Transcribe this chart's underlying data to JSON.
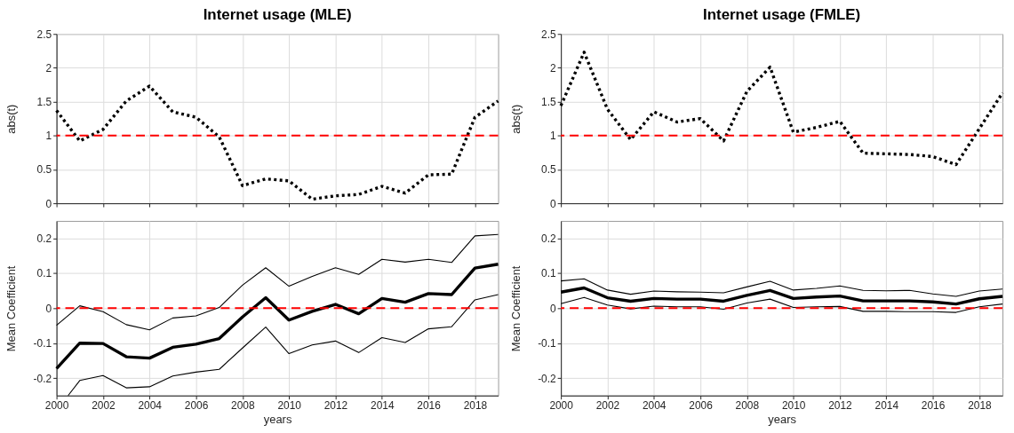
{
  "chart_data": [
    {
      "type": "line",
      "title": "Internet usage (MLE)",
      "ylabel": "abs(t)",
      "x": [
        2000,
        2001,
        2002,
        2003,
        2004,
        2005,
        2006,
        2007,
        2008,
        2009,
        2010,
        2011,
        2012,
        2013,
        2014,
        2015,
        2016,
        2017,
        2018,
        2019
      ],
      "series": [
        {
          "color": "#000000",
          "values": [
            1.37,
            0.92,
            1.09,
            1.51,
            1.73,
            1.35,
            1.27,
            0.98,
            0.26,
            0.36,
            0.33,
            0.06,
            0.11,
            0.13,
            0.25,
            0.15,
            0.42,
            0.43,
            1.27,
            1.51
          ]
        }
      ],
      "line_style": "dotted",
      "xlim": [
        2000,
        2019
      ],
      "xticks": [
        2000,
        2002,
        2004,
        2006,
        2008,
        2010,
        2012,
        2014,
        2016,
        2018
      ],
      "ylim": [
        0,
        2.5
      ],
      "yticks": [
        0,
        0.5,
        1,
        1.5,
        2,
        2.5
      ],
      "ref_lines": [
        {
          "axis": "y",
          "value": 1,
          "color": "#ff0000",
          "line_style": "dashed"
        }
      ],
      "grid": true,
      "tick_labels": "y"
    },
    {
      "type": "line",
      "title": "Internet usage (FMLE)",
      "ylabel": "abs(t)",
      "x": [
        2000,
        2001,
        2002,
        2003,
        2004,
        2005,
        2006,
        2007,
        2008,
        2009,
        2010,
        2011,
        2012,
        2013,
        2014,
        2015,
        2016,
        2017,
        2018,
        2019
      ],
      "series": [
        {
          "color": "#000000",
          "values": [
            1.44,
            2.23,
            1.39,
            0.94,
            1.35,
            1.2,
            1.25,
            0.92,
            1.65,
            2.01,
            1.05,
            1.12,
            1.21,
            0.74,
            0.73,
            0.72,
            0.69,
            0.57,
            1.1,
            1.63
          ]
        }
      ],
      "line_style": "dotted",
      "xlim": [
        2000,
        2019
      ],
      "xticks": [
        2000,
        2002,
        2004,
        2006,
        2008,
        2010,
        2012,
        2014,
        2016,
        2018
      ],
      "ylim": [
        0,
        2.5
      ],
      "yticks": [
        0,
        0.5,
        1,
        1.5,
        2,
        2.5
      ],
      "ref_lines": [
        {
          "axis": "y",
          "value": 1,
          "color": "#ff0000",
          "line_style": "dashed"
        }
      ],
      "grid": true,
      "tick_labels": "y"
    },
    {
      "type": "line",
      "xlabel": "years",
      "ylabel": "Mean Coefficient",
      "x": [
        2000,
        2001,
        2002,
        2003,
        2004,
        2005,
        2006,
        2007,
        2008,
        2009,
        2010,
        2011,
        2012,
        2013,
        2014,
        2015,
        2016,
        2017,
        2018,
        2019
      ],
      "series": [
        {
          "color": "#000000",
          "values": [
            -0.173,
            -0.1,
            -0.101,
            -0.139,
            -0.143,
            -0.112,
            -0.103,
            -0.087,
            -0.025,
            0.03,
            -0.034,
            -0.009,
            0.011,
            -0.016,
            0.028,
            0.017,
            0.042,
            0.039,
            0.115,
            0.126
          ]
        },
        {
          "color": "#000000",
          "values": [
            -0.049,
            0.007,
            -0.01,
            -0.047,
            -0.062,
            -0.028,
            -0.022,
            0.002,
            0.066,
            0.116,
            0.063,
            0.091,
            0.116,
            0.097,
            0.14,
            0.132,
            0.14,
            0.131,
            0.207,
            0.211
          ]
        },
        {
          "color": "#000000",
          "x": [
            2000.5,
            2001,
            2002,
            2003,
            2004,
            2005,
            2006,
            2007,
            2008,
            2009,
            2010,
            2011,
            2012,
            2013,
            2014,
            2015,
            2016,
            2017,
            2018,
            2019
          ],
          "values": [
            -0.25,
            -0.207,
            -0.193,
            -0.228,
            -0.225,
            -0.194,
            -0.183,
            -0.175,
            -0.114,
            -0.054,
            -0.13,
            -0.105,
            -0.094,
            -0.127,
            -0.084,
            -0.098,
            -0.059,
            -0.053,
            0.024,
            0.039
          ]
        }
      ],
      "line_style": "solid",
      "xlim": [
        2000,
        2019
      ],
      "xticks": [
        2000,
        2002,
        2004,
        2006,
        2008,
        2010,
        2012,
        2014,
        2016,
        2018
      ],
      "ylim": [
        -0.25,
        0.25
      ],
      "yticks": [
        -0.2,
        -0.1,
        0,
        0.1,
        0.2
      ],
      "ref_lines": [
        {
          "axis": "y",
          "value": 0,
          "color": "#ff0000",
          "line_style": "dashed"
        }
      ],
      "grid": true
    },
    {
      "type": "line",
      "xlabel": "years",
      "ylabel": "Mean Coefficient",
      "x": [
        2000,
        2001,
        2002,
        2003,
        2004,
        2005,
        2006,
        2007,
        2008,
        2009,
        2010,
        2011,
        2012,
        2013,
        2014,
        2015,
        2016,
        2017,
        2018,
        2019
      ],
      "series": [
        {
          "color": "#000000",
          "values": [
            0.046,
            0.058,
            0.03,
            0.02,
            0.028,
            0.026,
            0.026,
            0.02,
            0.037,
            0.051,
            0.028,
            0.032,
            0.035,
            0.021,
            0.021,
            0.021,
            0.018,
            0.012,
            0.027,
            0.034
          ]
        },
        {
          "color": "#000000",
          "values": [
            0.078,
            0.084,
            0.052,
            0.04,
            0.049,
            0.047,
            0.046,
            0.044,
            0.061,
            0.077,
            0.052,
            0.057,
            0.064,
            0.051,
            0.05,
            0.051,
            0.041,
            0.034,
            0.049,
            0.055
          ]
        },
        {
          "color": "#000000",
          "values": [
            0.013,
            0.031,
            0.009,
            -0.002,
            0.006,
            0.004,
            0.004,
            -0.003,
            0.015,
            0.026,
            0.002,
            0.004,
            0.005,
            -0.009,
            -0.009,
            -0.01,
            -0.01,
            -0.012,
            0.004,
            0.012
          ]
        }
      ],
      "line_style": "solid",
      "xlim": [
        2000,
        2019
      ],
      "xticks": [
        2000,
        2002,
        2004,
        2006,
        2008,
        2010,
        2012,
        2014,
        2016,
        2018
      ],
      "ylim": [
        -0.25,
        0.25
      ],
      "yticks": [
        -0.2,
        -0.1,
        0,
        0.1,
        0.2
      ],
      "ref_lines": [
        {
          "axis": "y",
          "value": 0,
          "color": "#ff0000",
          "line_style": "dashed"
        }
      ],
      "grid": true
    }
  ]
}
